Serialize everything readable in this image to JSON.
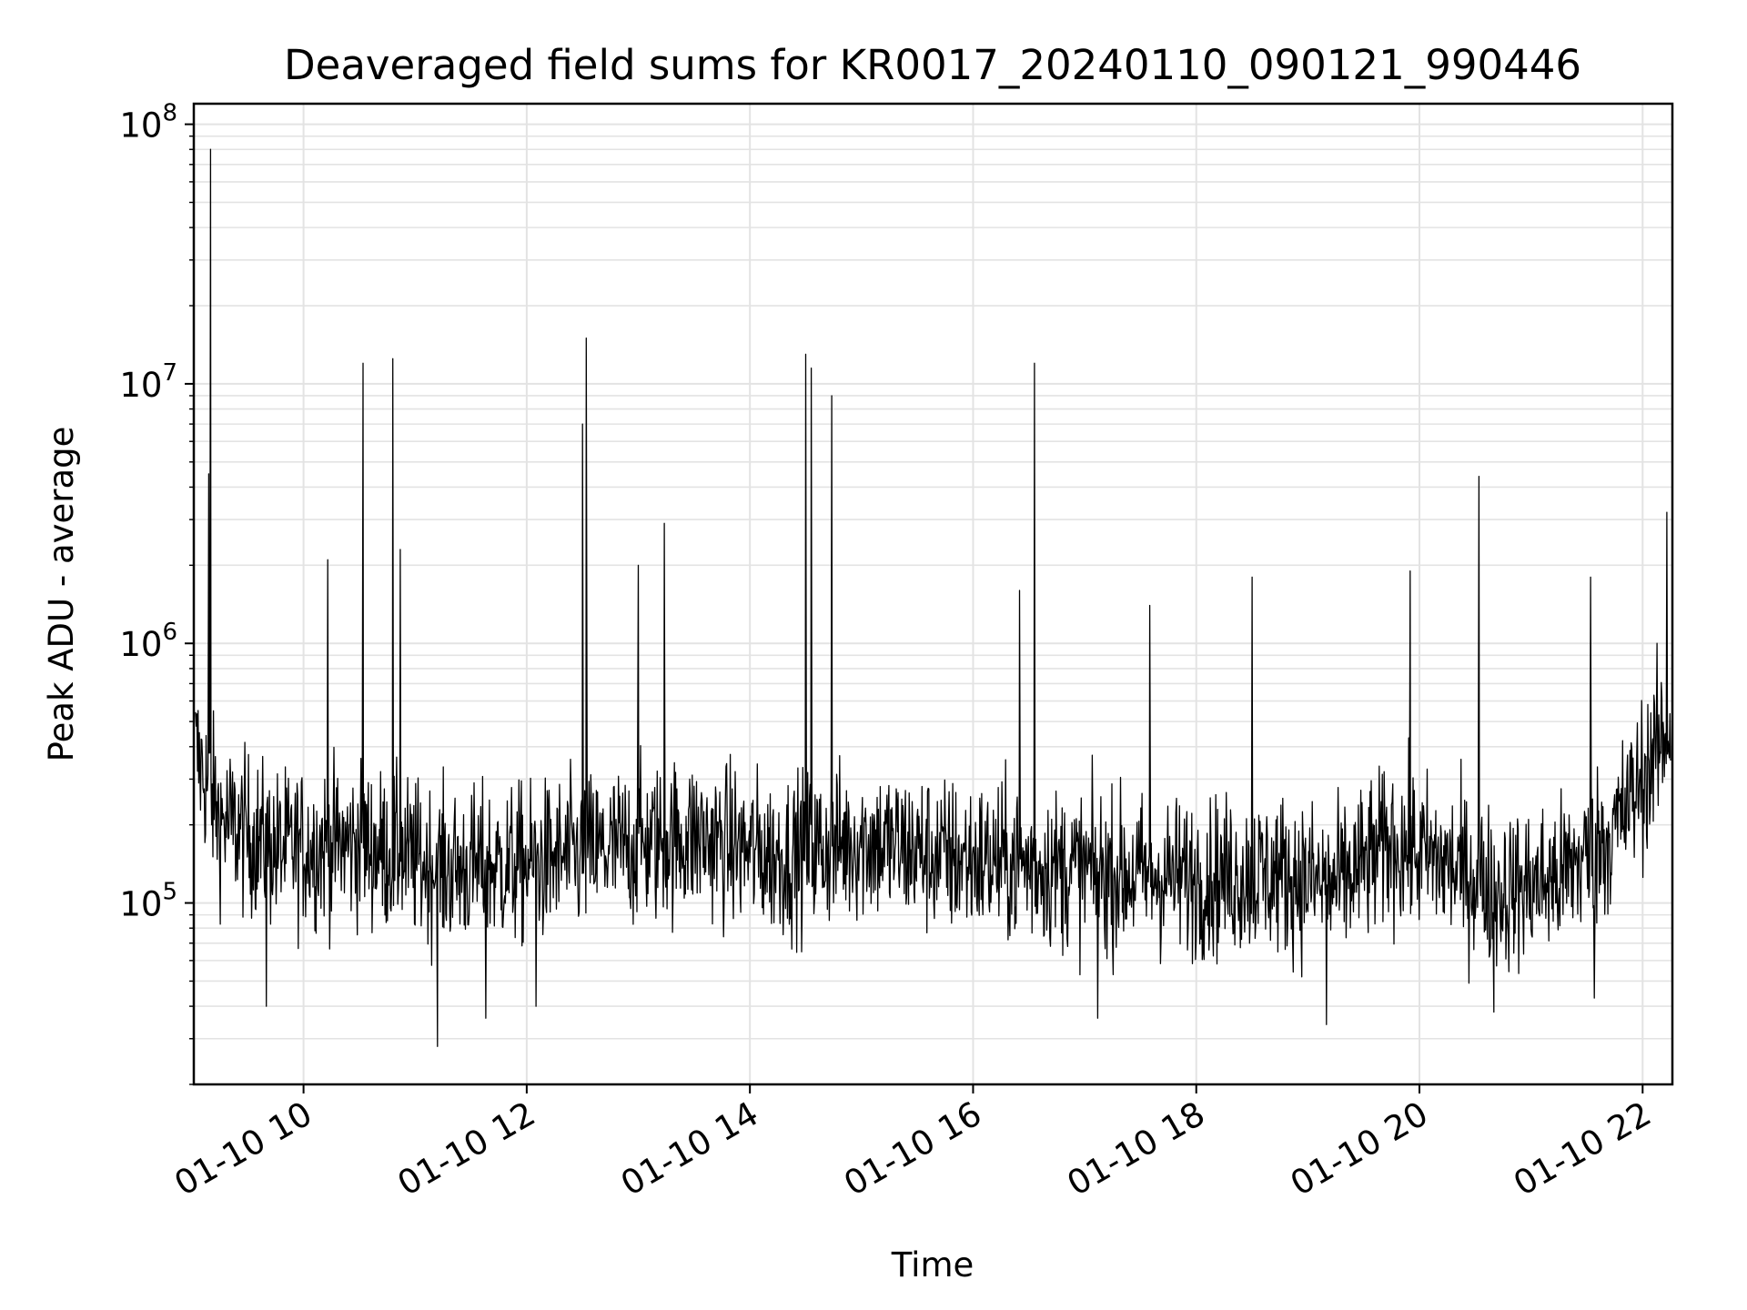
{
  "chart_data": {
    "type": "line",
    "title": "Deaveraged field sums for KR0017_20240110_090121_990446",
    "xlabel": "Time",
    "ylabel": "Peak ADU - average",
    "y_scale": "log",
    "ylim": [
      20000,
      120000000
    ],
    "xlim": [
      "2024-01-10 09:01",
      "2024-01-10 22:16"
    ],
    "grid": true,
    "x_ticks": [
      {
        "value": "2024-01-10 10:00",
        "label": "01-10 10"
      },
      {
        "value": "2024-01-10 12:00",
        "label": "01-10 12"
      },
      {
        "value": "2024-01-10 14:00",
        "label": "01-10 14"
      },
      {
        "value": "2024-01-10 16:00",
        "label": "01-10 16"
      },
      {
        "value": "2024-01-10 18:00",
        "label": "01-10 18"
      },
      {
        "value": "2024-01-10 20:00",
        "label": "01-10 20"
      },
      {
        "value": "2024-01-10 22:00",
        "label": "01-10 22"
      }
    ],
    "y_ticks": [
      {
        "value": 100000,
        "base": "10",
        "exp": "5"
      },
      {
        "value": 1000000,
        "base": "10",
        "exp": "6"
      },
      {
        "value": 10000000,
        "base": "10",
        "exp": "7"
      },
      {
        "value": 100000000,
        "base": "10",
        "exp": "8"
      }
    ],
    "series": [
      {
        "color": "#000000",
        "baseline_points": [
          [
            "2024-01-10 09:02",
            380000
          ],
          [
            "2024-01-10 09:15",
            210000
          ],
          [
            "2024-01-10 09:45",
            160000
          ],
          [
            "2024-01-10 10:30",
            170000
          ],
          [
            "2024-01-10 11:15",
            135000
          ],
          [
            "2024-01-10 12:00",
            140000
          ],
          [
            "2024-01-10 12:45",
            160000
          ],
          [
            "2024-01-10 13:30",
            180000
          ],
          [
            "2024-01-10 14:15",
            150000
          ],
          [
            "2024-01-10 15:00",
            175000
          ],
          [
            "2024-01-10 15:45",
            150000
          ],
          [
            "2024-01-10 16:30",
            140000
          ],
          [
            "2024-01-10 17:15",
            130000
          ],
          [
            "2024-01-10 18:00",
            125000
          ],
          [
            "2024-01-10 18:45",
            130000
          ],
          [
            "2024-01-10 19:15",
            115000
          ],
          [
            "2024-01-10 19:45",
            170000
          ],
          [
            "2024-01-10 20:15",
            140000
          ],
          [
            "2024-01-10 20:45",
            110000
          ],
          [
            "2024-01-10 21:15",
            125000
          ],
          [
            "2024-01-10 21:45",
            190000
          ],
          [
            "2024-01-10 22:15",
            480000
          ]
        ],
        "spikes": [
          [
            "2024-01-10 09:10",
            80000000
          ],
          [
            "2024-01-10 09:09",
            4500000
          ],
          [
            "2024-01-10 10:13",
            2100000
          ],
          [
            "2024-01-10 10:32",
            12000000
          ],
          [
            "2024-01-10 10:48",
            12500000
          ],
          [
            "2024-01-10 10:52",
            2300000
          ],
          [
            "2024-01-10 12:30",
            7000000
          ],
          [
            "2024-01-10 12:32",
            15000000
          ],
          [
            "2024-01-10 13:00",
            2000000
          ],
          [
            "2024-01-10 13:14",
            2900000
          ],
          [
            "2024-01-10 14:30",
            13000000
          ],
          [
            "2024-01-10 14:33",
            11500000
          ],
          [
            "2024-01-10 14:44",
            9000000
          ],
          [
            "2024-01-10 16:25",
            1600000
          ],
          [
            "2024-01-10 16:33",
            12000000
          ],
          [
            "2024-01-10 17:35",
            1400000
          ],
          [
            "2024-01-10 18:30",
            1800000
          ],
          [
            "2024-01-10 19:55",
            1900000
          ],
          [
            "2024-01-10 20:32",
            4400000
          ],
          [
            "2024-01-10 21:32",
            1800000
          ],
          [
            "2024-01-10 22:13",
            3200000
          ]
        ],
        "dips": [
          [
            "2024-01-10 09:40",
            40000
          ],
          [
            "2024-01-10 11:12",
            28000
          ],
          [
            "2024-01-10 11:38",
            36000
          ],
          [
            "2024-01-10 12:05",
            40000
          ],
          [
            "2024-01-10 17:07",
            36000
          ],
          [
            "2024-01-10 19:10",
            34000
          ],
          [
            "2024-01-10 20:40",
            38000
          ],
          [
            "2024-01-10 21:34",
            43000
          ]
        ]
      }
    ]
  }
}
